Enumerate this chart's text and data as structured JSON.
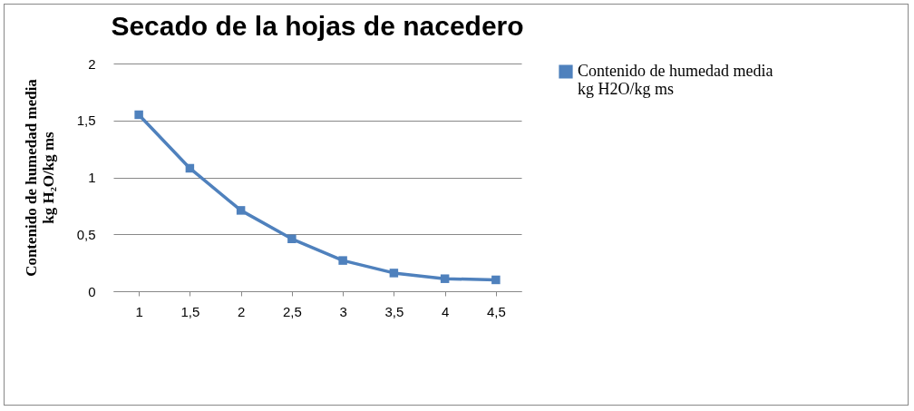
{
  "chart_data": {
    "type": "line",
    "title": "Secado de la hojas de nacedero",
    "ylabel": "Contenido de humedad media kg H₂O/kg ms",
    "categories": [
      "1",
      "1,5",
      "2",
      "2,5",
      "3",
      "3,5",
      "4",
      "4,5"
    ],
    "series": [
      {
        "name": "Contenido de humedad media kg H2O/kg ms",
        "color": "#4f81bd",
        "values": [
          1.55,
          1.08,
          0.71,
          0.46,
          0.27,
          0.16,
          0.11,
          0.1
        ]
      }
    ],
    "ylim": [
      0,
      2
    ],
    "yticks": [
      0,
      {
        "value": 0.5,
        "label": "0,5"
      },
      1,
      {
        "value": 1.5,
        "label": "1,5"
      },
      2
    ],
    "grid": "y",
    "legend": "right",
    "marker": "square"
  }
}
